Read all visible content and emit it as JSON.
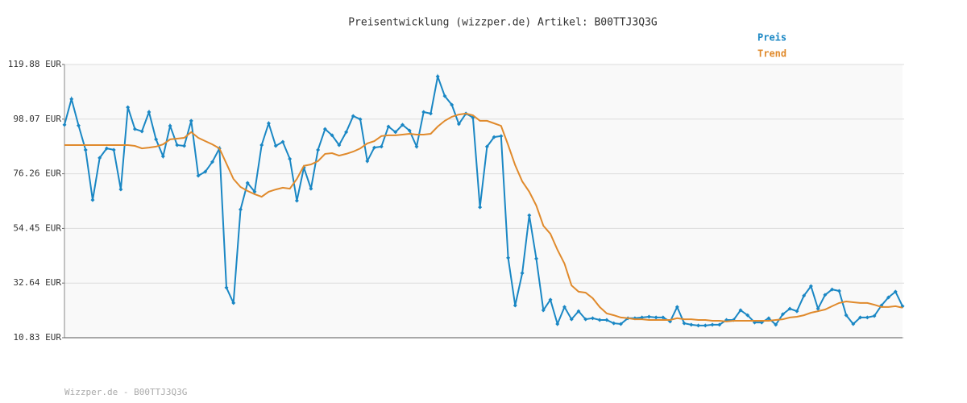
{
  "chart_data": {
    "type": "line",
    "title": "Preisentwicklung (wizzper.de) Artikel: B00TTJ3Q3G",
    "footer": "Wizzper.de - B00TTJ3Q3G",
    "ylim": [
      10.83,
      119.88
    ],
    "yticks": [
      {
        "value": 10.83,
        "label": "10.83 EUR"
      },
      {
        "value": 32.64,
        "label": "32.64 EUR"
      },
      {
        "value": 54.45,
        "label": "54.45 EUR"
      },
      {
        "value": 76.26,
        "label": "76.26 EUR"
      },
      {
        "value": 98.07,
        "label": "98.07 EUR"
      },
      {
        "value": 119.88,
        "label": "119.88 EUR"
      }
    ],
    "grid": true,
    "legend": "top-right",
    "series": [
      {
        "name": "Preis",
        "color": "#1a87c4",
        "markers": true,
        "values": [
          95.8,
          106.1,
          95.5,
          85.8,
          65.8,
          82.6,
          86.4,
          85.8,
          70.0,
          102.8,
          94.1,
          93.2,
          100.9,
          90.0,
          83.2,
          95.4,
          87.7,
          87.4,
          97.4,
          75.5,
          77.1,
          81.0,
          86.4,
          30.8,
          24.7,
          62.0,
          72.6,
          69.1,
          87.7,
          96.4,
          87.4,
          89.0,
          82.2,
          65.5,
          78.7,
          70.3,
          85.8,
          94.1,
          91.6,
          87.7,
          92.9,
          99.3,
          98.0,
          81.3,
          86.7,
          87.1,
          95.1,
          92.9,
          95.8,
          93.5,
          87.1,
          100.9,
          100.3,
          115.1,
          107.3,
          103.8,
          96.1,
          100.3,
          98.7,
          62.9,
          87.1,
          90.9,
          91.3,
          42.7,
          23.7,
          36.6,
          59.7,
          42.4,
          21.8,
          26.0,
          16.3,
          23.1,
          18.2,
          21.4,
          18.2,
          18.6,
          17.9,
          17.9,
          16.6,
          16.3,
          18.6,
          18.6,
          18.9,
          19.2,
          18.9,
          18.9,
          17.3,
          23.1,
          16.6,
          16.0,
          15.7,
          15.7,
          16.0,
          16.0,
          17.9,
          17.9,
          21.8,
          19.8,
          16.9,
          16.9,
          18.6,
          16.0,
          20.2,
          22.4,
          21.4,
          27.6,
          31.4,
          22.4,
          27.9,
          30.1,
          29.5,
          19.8,
          16.3,
          18.9,
          18.9,
          19.5,
          23.7,
          26.9,
          29.2,
          23.4
        ]
      },
      {
        "name": "Trend",
        "color": "#e08a2c",
        "markers": false,
        "values": [
          87.7,
          87.7,
          87.7,
          87.7,
          87.7,
          87.7,
          87.7,
          87.7,
          87.7,
          87.7,
          87.4,
          86.4,
          86.7,
          87.1,
          88.0,
          90.0,
          90.3,
          90.6,
          92.9,
          90.6,
          89.3,
          88.0,
          86.4,
          80.3,
          74.2,
          71.0,
          69.4,
          68.1,
          67.1,
          69.1,
          70.0,
          70.7,
          70.3,
          74.2,
          79.4,
          80.0,
          81.3,
          84.2,
          84.5,
          83.5,
          84.2,
          85.1,
          86.4,
          88.4,
          89.3,
          91.3,
          91.6,
          91.6,
          91.9,
          92.2,
          91.9,
          91.9,
          92.2,
          95.1,
          97.4,
          99.0,
          99.9,
          100.3,
          99.6,
          97.4,
          97.4,
          96.4,
          95.4,
          87.7,
          79.7,
          73.2,
          69.1,
          63.6,
          55.5,
          52.3,
          45.9,
          40.4,
          31.7,
          29.2,
          28.8,
          26.6,
          23.1,
          20.5,
          19.8,
          18.9,
          18.6,
          18.2,
          18.2,
          17.9,
          17.9,
          17.9,
          17.9,
          18.6,
          18.2,
          18.2,
          17.9,
          17.9,
          17.6,
          17.6,
          17.3,
          17.6,
          17.6,
          17.6,
          17.6,
          17.6,
          17.6,
          17.9,
          18.2,
          18.9,
          19.2,
          19.8,
          20.8,
          21.4,
          22.1,
          23.4,
          24.7,
          25.3,
          25.0,
          24.7,
          24.7,
          24.0,
          23.1,
          23.1,
          23.4,
          22.8
        ]
      }
    ]
  }
}
